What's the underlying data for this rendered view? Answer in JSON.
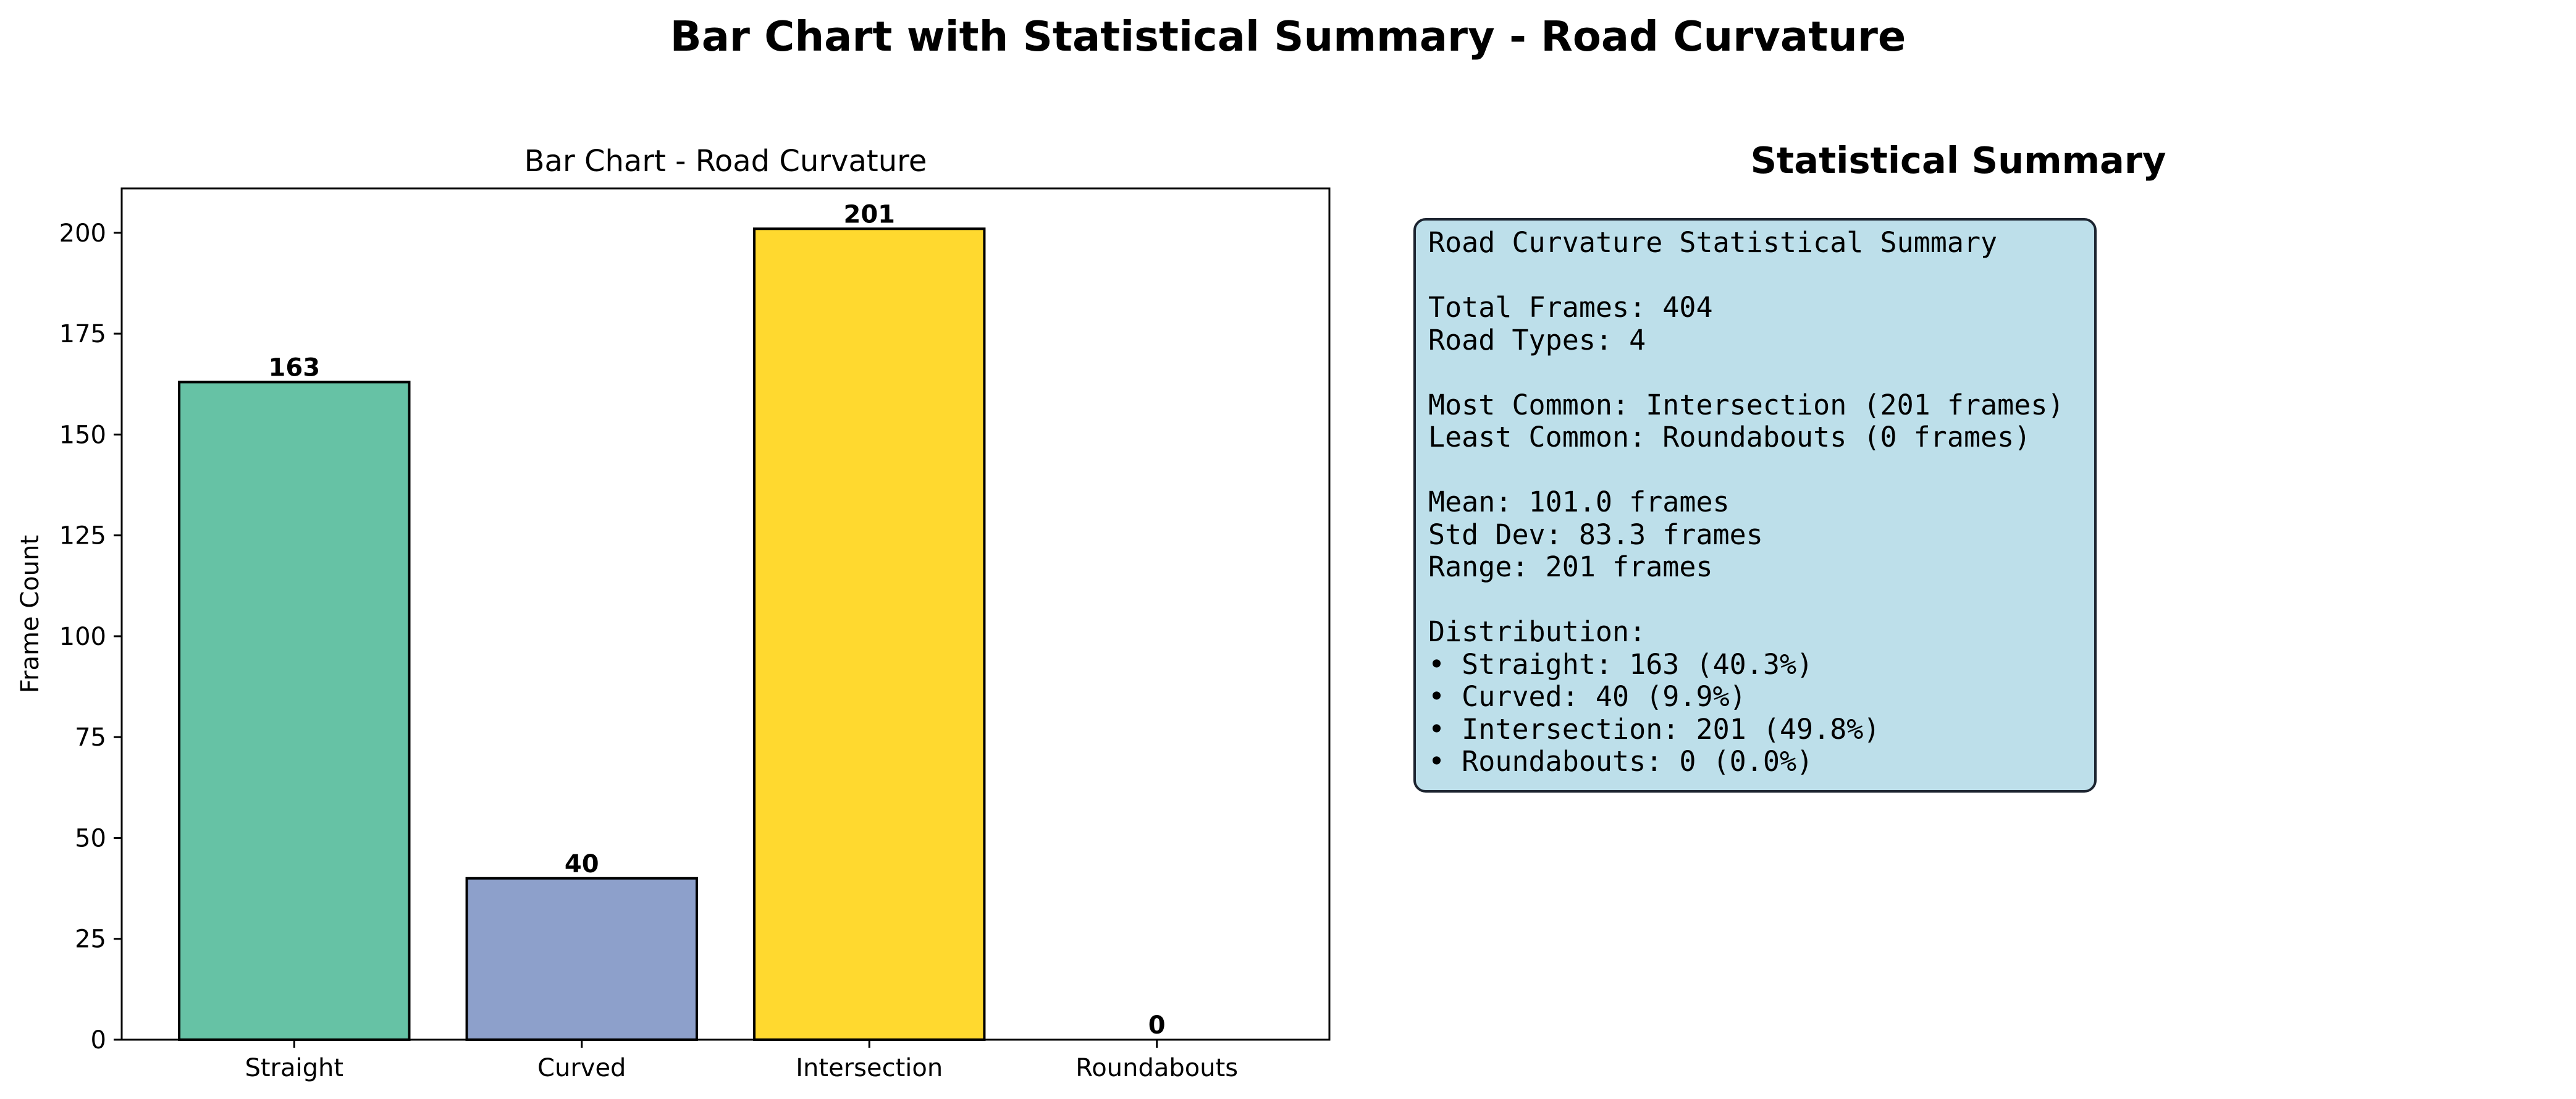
{
  "figure": {
    "suptitle": "Bar Chart with Statistical Summary - Road Curvature"
  },
  "chart_data": {
    "type": "bar",
    "title": "Bar Chart - Road Curvature",
    "xlabel": "",
    "ylabel": "Frame Count",
    "categories": [
      "Straight",
      "Curved",
      "Intersection",
      "Roundabouts"
    ],
    "values": [
      163,
      40,
      201,
      0
    ],
    "data_labels": [
      "163",
      "40",
      "201",
      "0"
    ],
    "colors": [
      "#66c2a5",
      "#8da0cb",
      "#ffd92f",
      "#e5c494"
    ],
    "ylim": [
      0,
      211
    ],
    "yticks": [
      0,
      25,
      50,
      75,
      100,
      125,
      150,
      175,
      200
    ],
    "grid": false,
    "legend": "none"
  },
  "summary": {
    "title": "Statistical Summary",
    "lines": [
      "Road Curvature Statistical Summary",
      "",
      "Total Frames: 404",
      "Road Types: 4",
      "",
      "Most Common: Intersection (201 frames)",
      "Least Common: Roundabouts (0 frames)",
      "",
      "Mean: 101.0 frames",
      "Std Dev: 83.3 frames",
      "Range: 201 frames",
      "",
      "Distribution:",
      "• Straight: 163 (40.3%)",
      "• Curved: 40 (9.9%)",
      "• Intersection: 201 (49.8%)",
      "• Roundabouts: 0 (0.0%)"
    ],
    "box_color": "#bddfea"
  }
}
